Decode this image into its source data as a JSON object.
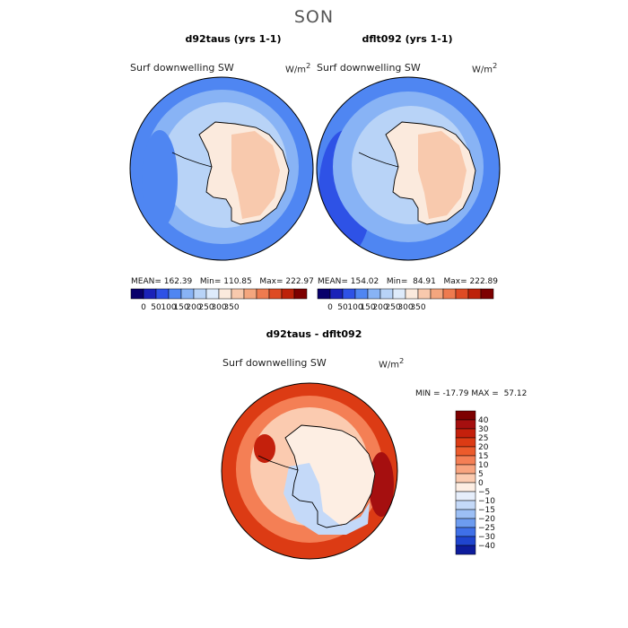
{
  "season": "SON",
  "chart_data": [
    {
      "type": "heatmap",
      "title": "d92taus (yrs 1-1)",
      "variable": "Surf downwelling SW",
      "units": "W/m",
      "units_exp": "2",
      "mean_label": "MEAN=",
      "mean": "162.39",
      "min_label": "Min=",
      "min": "110.85",
      "max_label": "Max=",
      "max": "222.97",
      "colorbar_ticks": [
        "0",
        "50",
        "100",
        "150",
        "200",
        "250",
        "300",
        "350"
      ],
      "colors": [
        "#08006b",
        "#1a22b8",
        "#2e52e6",
        "#4f86f2",
        "#88b3f5",
        "#b8d3f7",
        "#deebfb",
        "#fbeadd",
        "#f8c9ad",
        "#f4a67e",
        "#ee7b4f",
        "#de4b24",
        "#bd2209",
        "#7d0000"
      ]
    },
    {
      "type": "heatmap",
      "title": "dflt092 (yrs 1-1)",
      "variable": "Surf downwelling SW",
      "units": "W/m",
      "units_exp": "2",
      "mean_label": "MEAN=",
      "mean": "154.02",
      "min_label": "Min=",
      "min": "84.91",
      "max_label": "Max=",
      "max": "222.89",
      "colorbar_ticks": [
        "0",
        "50",
        "100",
        "150",
        "200",
        "250",
        "300",
        "350"
      ],
      "colors": [
        "#08006b",
        "#1a22b8",
        "#2e52e6",
        "#4f86f2",
        "#88b3f5",
        "#b8d3f7",
        "#deebfb",
        "#fbeadd",
        "#f8c9ad",
        "#f4a67e",
        "#ee7b4f",
        "#de4b24",
        "#bd2209",
        "#7d0000"
      ]
    },
    {
      "type": "heatmap",
      "title": "d92taus - dflt092",
      "variable": "Surf downwelling SW",
      "units": "W/m",
      "units_exp": "2",
      "min_label": "MIN =",
      "min": "-17.79",
      "max_label": "MAX =",
      "max": "57.12",
      "colorbar_ticks": [
        "40",
        "30",
        "25",
        "20",
        "15",
        "10",
        "5",
        "0",
        "−5",
        "−10",
        "−15",
        "−20",
        "−25",
        "−30",
        "−40"
      ],
      "colors": [
        "#7d0000",
        "#a50f0f",
        "#c4200c",
        "#dc3b14",
        "#ec5b2c",
        "#f47f55",
        "#f8a47f",
        "#fbcbb0",
        "#fdeee3",
        "#e6eefb",
        "#c4d9f8",
        "#9cbff5",
        "#6d9cf0",
        "#3f70e8",
        "#1f45cf",
        "#0d1c9c"
      ]
    }
  ]
}
